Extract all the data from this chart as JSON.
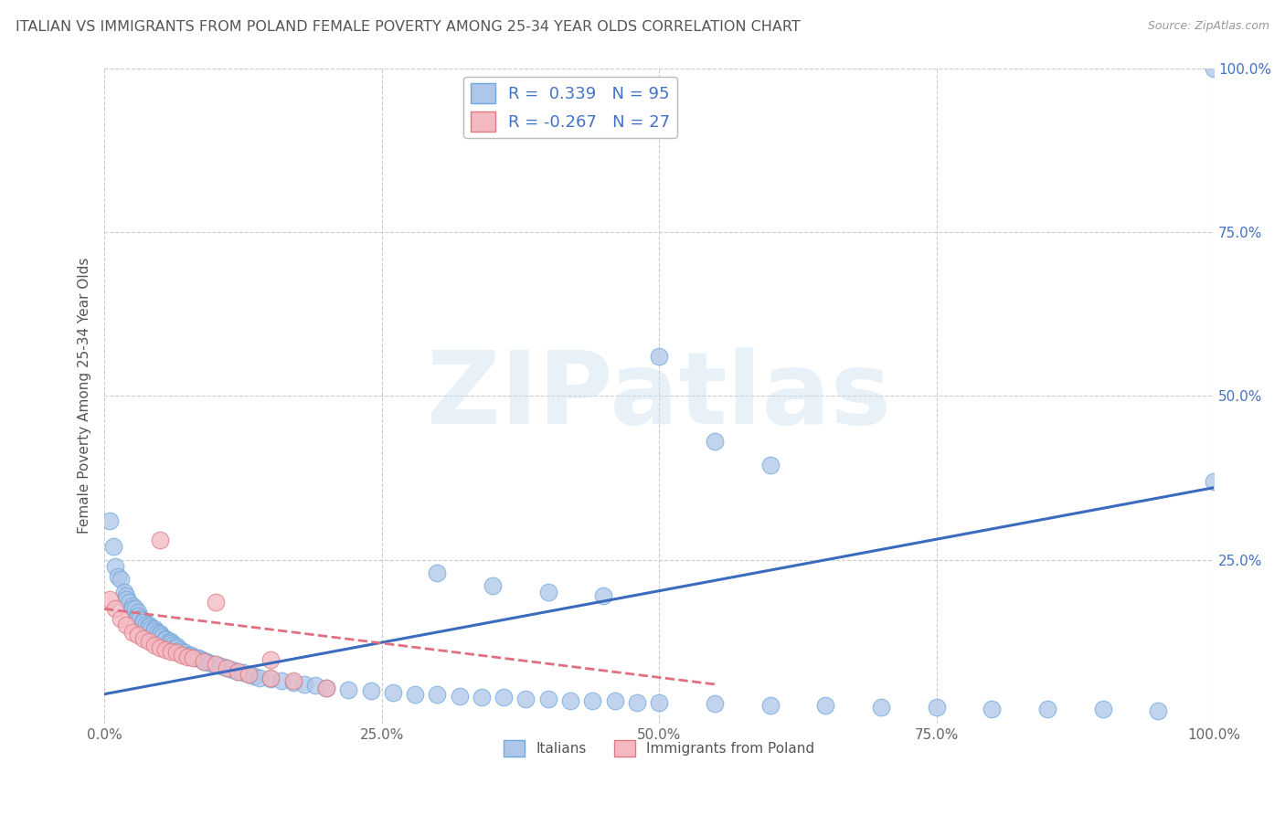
{
  "title": "ITALIAN VS IMMIGRANTS FROM POLAND FEMALE POVERTY AMONG 25-34 YEAR OLDS CORRELATION CHART",
  "source": "Source: ZipAtlas.com",
  "ylabel": "Female Poverty Among 25-34 Year Olds",
  "watermark": "ZIPatlas",
  "xlim": [
    0,
    1.0
  ],
  "ylim": [
    0,
    1.0
  ],
  "xticks": [
    0.0,
    0.25,
    0.5,
    0.75,
    1.0
  ],
  "xtick_labels": [
    "0.0%",
    "25.0%",
    "50.0%",
    "75.0%",
    "100.0%"
  ],
  "yticks": [
    0.25,
    0.5,
    0.75,
    1.0
  ],
  "ytick_labels": [
    "25.0%",
    "50.0%",
    "75.0%",
    "100.0%"
  ],
  "series1_label": "Italians",
  "series1_color": "#aec6e8",
  "series1_edge": "#6fa8dc",
  "series1_R": 0.339,
  "series1_N": 95,
  "series1_line_color": "#3a6bbf",
  "series2_label": "Immigrants from Poland",
  "series2_color": "#f4b8c1",
  "series2_edge": "#e07880",
  "series2_R": -0.267,
  "series2_N": 27,
  "series2_line_color": "#e07080",
  "legend_R_color": "#4472c4",
  "title_fontsize": 11.5,
  "axis_label_fontsize": 11,
  "tick_fontsize": 11,
  "background_color": "#ffffff",
  "grid_color": "#cccccc",
  "italians_x": [
    0.005,
    0.008,
    0.01,
    0.012,
    0.015,
    0.018,
    0.02,
    0.02,
    0.022,
    0.025,
    0.025,
    0.028,
    0.03,
    0.03,
    0.032,
    0.035,
    0.035,
    0.038,
    0.04,
    0.04,
    0.042,
    0.045,
    0.045,
    0.048,
    0.05,
    0.05,
    0.052,
    0.055,
    0.055,
    0.058,
    0.06,
    0.06,
    0.062,
    0.065,
    0.065,
    0.068,
    0.07,
    0.072,
    0.075,
    0.078,
    0.08,
    0.082,
    0.085,
    0.088,
    0.09,
    0.092,
    0.095,
    0.1,
    0.105,
    0.11,
    0.115,
    0.12,
    0.125,
    0.13,
    0.135,
    0.14,
    0.15,
    0.16,
    0.17,
    0.18,
    0.19,
    0.2,
    0.22,
    0.24,
    0.26,
    0.28,
    0.3,
    0.32,
    0.34,
    0.36,
    0.38,
    0.4,
    0.42,
    0.44,
    0.46,
    0.48,
    0.5,
    0.55,
    0.6,
    0.65,
    0.7,
    0.75,
    0.8,
    0.85,
    0.9,
    0.95,
    1.0,
    0.3,
    0.35,
    0.4,
    0.45,
    0.5,
    0.55,
    0.6,
    1.0
  ],
  "italians_y": [
    0.31,
    0.27,
    0.24,
    0.225,
    0.22,
    0.2,
    0.195,
    0.19,
    0.185,
    0.18,
    0.175,
    0.175,
    0.17,
    0.165,
    0.16,
    0.158,
    0.155,
    0.152,
    0.15,
    0.148,
    0.145,
    0.145,
    0.142,
    0.14,
    0.138,
    0.135,
    0.133,
    0.13,
    0.128,
    0.125,
    0.125,
    0.122,
    0.12,
    0.118,
    0.115,
    0.113,
    0.11,
    0.108,
    0.105,
    0.105,
    0.102,
    0.1,
    0.1,
    0.098,
    0.095,
    0.095,
    0.092,
    0.09,
    0.088,
    0.085,
    0.082,
    0.08,
    0.078,
    0.075,
    0.072,
    0.07,
    0.068,
    0.065,
    0.063,
    0.06,
    0.058,
    0.055,
    0.052,
    0.05,
    0.048,
    0.045,
    0.045,
    0.042,
    0.04,
    0.04,
    0.038,
    0.038,
    0.035,
    0.035,
    0.035,
    0.032,
    0.032,
    0.03,
    0.028,
    0.028,
    0.025,
    0.025,
    0.022,
    0.022,
    0.022,
    0.02,
    1.0,
    0.23,
    0.21,
    0.2,
    0.195,
    0.56,
    0.43,
    0.395,
    0.37
  ],
  "poland_x": [
    0.005,
    0.01,
    0.015,
    0.02,
    0.025,
    0.03,
    0.035,
    0.04,
    0.045,
    0.05,
    0.055,
    0.06,
    0.065,
    0.07,
    0.075,
    0.08,
    0.09,
    0.1,
    0.11,
    0.12,
    0.13,
    0.15,
    0.17,
    0.2,
    0.05,
    0.1,
    0.15
  ],
  "poland_y": [
    0.19,
    0.175,
    0.16,
    0.15,
    0.14,
    0.135,
    0.13,
    0.125,
    0.12,
    0.115,
    0.113,
    0.11,
    0.108,
    0.105,
    0.102,
    0.1,
    0.095,
    0.09,
    0.085,
    0.08,
    0.075,
    0.07,
    0.065,
    0.055,
    0.28,
    0.185,
    0.098
  ],
  "trend1_x0": 0.0,
  "trend1_y0": 0.045,
  "trend1_x1": 1.0,
  "trend1_y1": 0.36,
  "trend2_x0": 0.0,
  "trend2_y0": 0.175,
  "trend2_x1": 0.55,
  "trend2_y1": 0.06
}
